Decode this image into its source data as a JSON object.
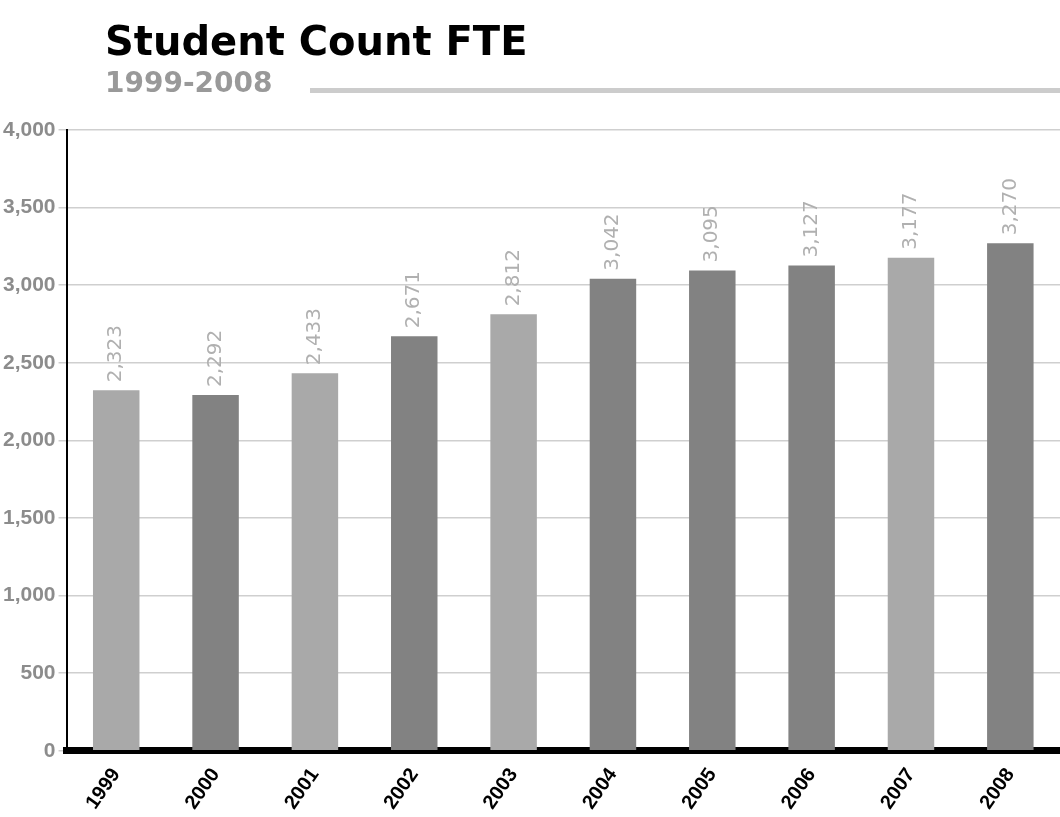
{
  "chart_data": {
    "type": "bar",
    "title": "Student Count FTE",
    "subtitle": "1999-2008",
    "categories": [
      "1999",
      "2000",
      "2001",
      "2002",
      "2003",
      "2004",
      "2005",
      "2006",
      "2007",
      "2008"
    ],
    "values": [
      2323,
      2292,
      2433,
      2671,
      2812,
      3042,
      3095,
      3127,
      3177,
      3270
    ],
    "colors": [
      "#a9a9a9",
      "#828282",
      "#a9a9a9",
      "#828282",
      "#a9a9a9",
      "#828282",
      "#828282",
      "#828282",
      "#a9a9a9",
      "#828282"
    ],
    "value_labels": [
      "2,323",
      "2,292",
      "2,433",
      "2,671",
      "2,812",
      "3,042",
      "3,095",
      "3,127",
      "3,177",
      "3,270"
    ],
    "ylim": [
      0,
      4000
    ],
    "yticks": [
      {
        "value": 0,
        "label": "0"
      },
      {
        "value": 500,
        "label": "500"
      },
      {
        "value": 1000,
        "label": "1,000"
      },
      {
        "value": 1500,
        "label": "1,500"
      },
      {
        "value": 2000,
        "label": "2,000"
      },
      {
        "value": 2500,
        "label": "2,500"
      },
      {
        "value": 3000,
        "label": "3,000"
      },
      {
        "value": 3500,
        "label": "3,500"
      },
      {
        "value": 4000,
        "label": "4,000"
      }
    ],
    "grid": "y",
    "legend": false
  }
}
